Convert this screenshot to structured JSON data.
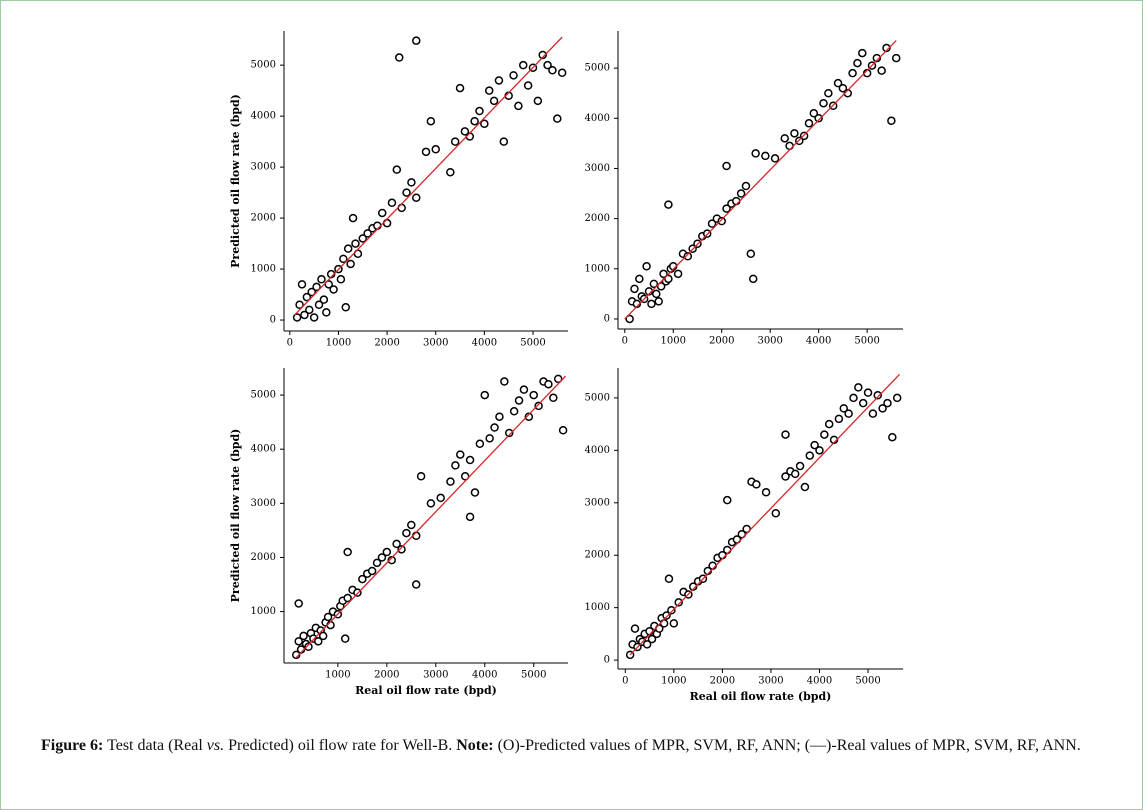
{
  "chart_data": [
    {
      "type": "scatter",
      "y_label": "Predicted oil flow rate (bpd)",
      "xlim": [
        -120,
        5720
      ],
      "ylim": [
        -215,
        5670
      ],
      "xticks": [
        0,
        1000,
        2000,
        3000,
        4000,
        5000
      ],
      "yticks": [
        0,
        1000,
        2000,
        3000,
        4000,
        5000
      ],
      "marker_color": "#000000",
      "x": [
        150,
        200,
        250,
        300,
        350,
        400,
        450,
        500,
        550,
        600,
        650,
        700,
        750,
        800,
        850,
        900,
        1000,
        1050,
        1100,
        1150,
        1200,
        1250,
        1300,
        1350,
        1400,
        1500,
        1600,
        1700,
        1800,
        1900,
        2000,
        2100,
        2200,
        2300,
        2400,
        2500,
        2600,
        2800,
        2900,
        3000,
        3300,
        3400,
        3500,
        3600,
        3700,
        3800,
        3900,
        4000,
        4100,
        4200,
        4300,
        4400,
        4500,
        4600,
        4700,
        4800,
        4900,
        5000,
        5100,
        5200,
        5300,
        5400,
        5500,
        5600,
        2250,
        2600
      ],
      "values": [
        50,
        300,
        700,
        100,
        450,
        200,
        550,
        50,
        650,
        300,
        800,
        400,
        150,
        700,
        900,
        600,
        1000,
        800,
        1200,
        250,
        1400,
        1100,
        2000,
        1500,
        1300,
        1600,
        1700,
        1800,
        1850,
        2100,
        1900,
        2300,
        2950,
        2200,
        2500,
        2700,
        2400,
        3300,
        3900,
        3350,
        2900,
        3500,
        4550,
        3700,
        3600,
        3900,
        4100,
        3850,
        4500,
        4300,
        4700,
        3500,
        4400,
        4800,
        4200,
        5000,
        4600,
        4950,
        4300,
        5200,
        5000,
        4900,
        3950,
        4850,
        5150,
        5480
      ],
      "fit_line": {
        "color": "#d62728",
        "x": [
          100,
          5600
        ],
        "y": [
          100,
          5550
        ]
      }
    },
    {
      "type": "scatter",
      "xlim": [
        -140,
        5740
      ],
      "ylim": [
        -200,
        5740
      ],
      "xticks": [
        0,
        1000,
        2000,
        3000,
        4000,
        5000
      ],
      "yticks": [
        0,
        1000,
        2000,
        3000,
        4000,
        5000
      ],
      "marker_color": "#000000",
      "x": [
        100,
        150,
        200,
        250,
        300,
        350,
        400,
        450,
        500,
        550,
        600,
        650,
        700,
        750,
        800,
        850,
        900,
        950,
        1000,
        1100,
        1200,
        1300,
        1400,
        1500,
        1600,
        1700,
        1800,
        1900,
        2000,
        2100,
        2200,
        2300,
        2400,
        2500,
        2700,
        2900,
        3100,
        3300,
        3400,
        3500,
        3600,
        3700,
        3800,
        3900,
        4000,
        4100,
        4200,
        4300,
        4400,
        4500,
        4600,
        4700,
        4800,
        4900,
        5000,
        5100,
        5200,
        5300,
        5400,
        5600,
        900,
        2650,
        2600,
        2100,
        5500
      ],
      "values": [
        0,
        350,
        600,
        300,
        800,
        450,
        400,
        1050,
        550,
        300,
        700,
        500,
        350,
        650,
        900,
        750,
        800,
        1000,
        1050,
        900,
        1300,
        1250,
        1400,
        1500,
        1650,
        1700,
        1900,
        2000,
        1950,
        2200,
        2300,
        2350,
        2500,
        2650,
        3300,
        3250,
        3200,
        3600,
        3450,
        3700,
        3550,
        3650,
        3900,
        4100,
        4000,
        4300,
        4500,
        4250,
        4700,
        4600,
        4500,
        4900,
        5100,
        5300,
        4900,
        5050,
        5200,
        4950,
        5400,
        5200,
        2280,
        800,
        1300,
        3050,
        3950
      ],
      "fit_line": {
        "color": "#d62728",
        "x": [
          0,
          5600
        ],
        "y": [
          0,
          5550
        ]
      }
    },
    {
      "type": "scatter",
      "x_label": "Real oil flow rate (bpd)",
      "y_label": "Predicted oil flow rate (bpd)",
      "xlim": [
        -100,
        5700
      ],
      "ylim": [
        50,
        5500
      ],
      "xticks": [
        1000,
        2000,
        3000,
        4000,
        5000
      ],
      "yticks": [
        1000,
        2000,
        3000,
        4000,
        5000
      ],
      "marker_color": "#000000",
      "x": [
        150,
        200,
        250,
        300,
        350,
        400,
        450,
        500,
        550,
        600,
        650,
        700,
        750,
        800,
        850,
        900,
        1000,
        1050,
        1100,
        1150,
        1200,
        1300,
        1400,
        1500,
        1600,
        1700,
        1800,
        1900,
        2000,
        2100,
        2200,
        2300,
        2400,
        2500,
        2600,
        2700,
        2900,
        3100,
        3300,
        3400,
        3500,
        3600,
        3700,
        3800,
        3900,
        4000,
        4100,
        4200,
        4300,
        4400,
        4500,
        4600,
        4700,
        4800,
        4900,
        5000,
        5100,
        5200,
        5300,
        5400,
        5500,
        200,
        3700,
        2600,
        5600,
        1200
      ],
      "values": [
        200,
        450,
        300,
        550,
        400,
        350,
        600,
        500,
        700,
        450,
        650,
        550,
        800,
        900,
        750,
        1000,
        950,
        1100,
        1200,
        500,
        1250,
        1400,
        1350,
        1600,
        1700,
        1750,
        1900,
        2000,
        2100,
        1950,
        2250,
        2150,
        2450,
        2600,
        2400,
        3500,
        3000,
        3100,
        3400,
        3700,
        3900,
        3500,
        3800,
        3200,
        4100,
        5000,
        4200,
        4400,
        4600,
        5250,
        4300,
        4700,
        4900,
        5100,
        4600,
        5000,
        4800,
        5250,
        5200,
        4950,
        5300,
        1150,
        2750,
        1500,
        4350,
        2100
      ],
      "fit_line": {
        "color": "#d62728",
        "x": [
          150,
          5650
        ],
        "y": [
          150,
          5350
        ]
      }
    },
    {
      "type": "scatter",
      "x_label": "Real oil flow rate (bpd)",
      "xlim": [
        -150,
        5720
      ],
      "ylim": [
        -170,
        5570
      ],
      "xticks": [
        0,
        1000,
        2000,
        3000,
        4000,
        5000
      ],
      "yticks": [
        0,
        1000,
        2000,
        3000,
        4000,
        5000
      ],
      "marker_color": "#000000",
      "x": [
        100,
        150,
        200,
        250,
        300,
        350,
        400,
        450,
        500,
        550,
        600,
        650,
        700,
        750,
        800,
        850,
        950,
        1000,
        1100,
        1200,
        1300,
        1400,
        1500,
        1600,
        1700,
        1800,
        1900,
        2000,
        2100,
        2200,
        2300,
        2400,
        2500,
        2600,
        2700,
        2900,
        3100,
        3300,
        3400,
        3500,
        3600,
        3700,
        3800,
        3900,
        4000,
        4100,
        4200,
        4300,
        4400,
        4500,
        4600,
        4700,
        4800,
        4900,
        5000,
        5100,
        5200,
        5300,
        5400,
        5600,
        900,
        2100,
        3300,
        5500
      ],
      "values": [
        100,
        300,
        600,
        250,
        400,
        350,
        500,
        300,
        550,
        400,
        650,
        500,
        600,
        800,
        700,
        850,
        950,
        700,
        1100,
        1300,
        1250,
        1400,
        1500,
        1550,
        1700,
        1800,
        1950,
        2000,
        2100,
        2250,
        2300,
        2400,
        2500,
        3400,
        3350,
        3200,
        2800,
        3500,
        3600,
        3550,
        3700,
        3300,
        3900,
        4100,
        4000,
        4300,
        4500,
        4200,
        4600,
        4800,
        4700,
        5000,
        5200,
        4900,
        5100,
        4700,
        5050,
        4800,
        4900,
        5000,
        1550,
        3050,
        4300,
        4250
      ],
      "fit_line": {
        "color": "#d62728",
        "x": [
          100,
          5650
        ],
        "y": [
          100,
          5450
        ]
      }
    }
  ],
  "caption": [
    {
      "text": "Figure 6:",
      "style": "bold"
    },
    {
      "text": " Test data (Real ",
      "style": "normal"
    },
    {
      "text": "vs.",
      "style": "italic"
    },
    {
      "text": " Predicted) oil flow rate for Well-B. ",
      "style": "normal"
    },
    {
      "text": "Note:",
      "style": "bold"
    },
    {
      "text": " (O)-Predicted values of MPR, SVM, RF, ANN; (—)-Real values of MPR, SVM, RF, ANN.",
      "style": "normal"
    }
  ]
}
